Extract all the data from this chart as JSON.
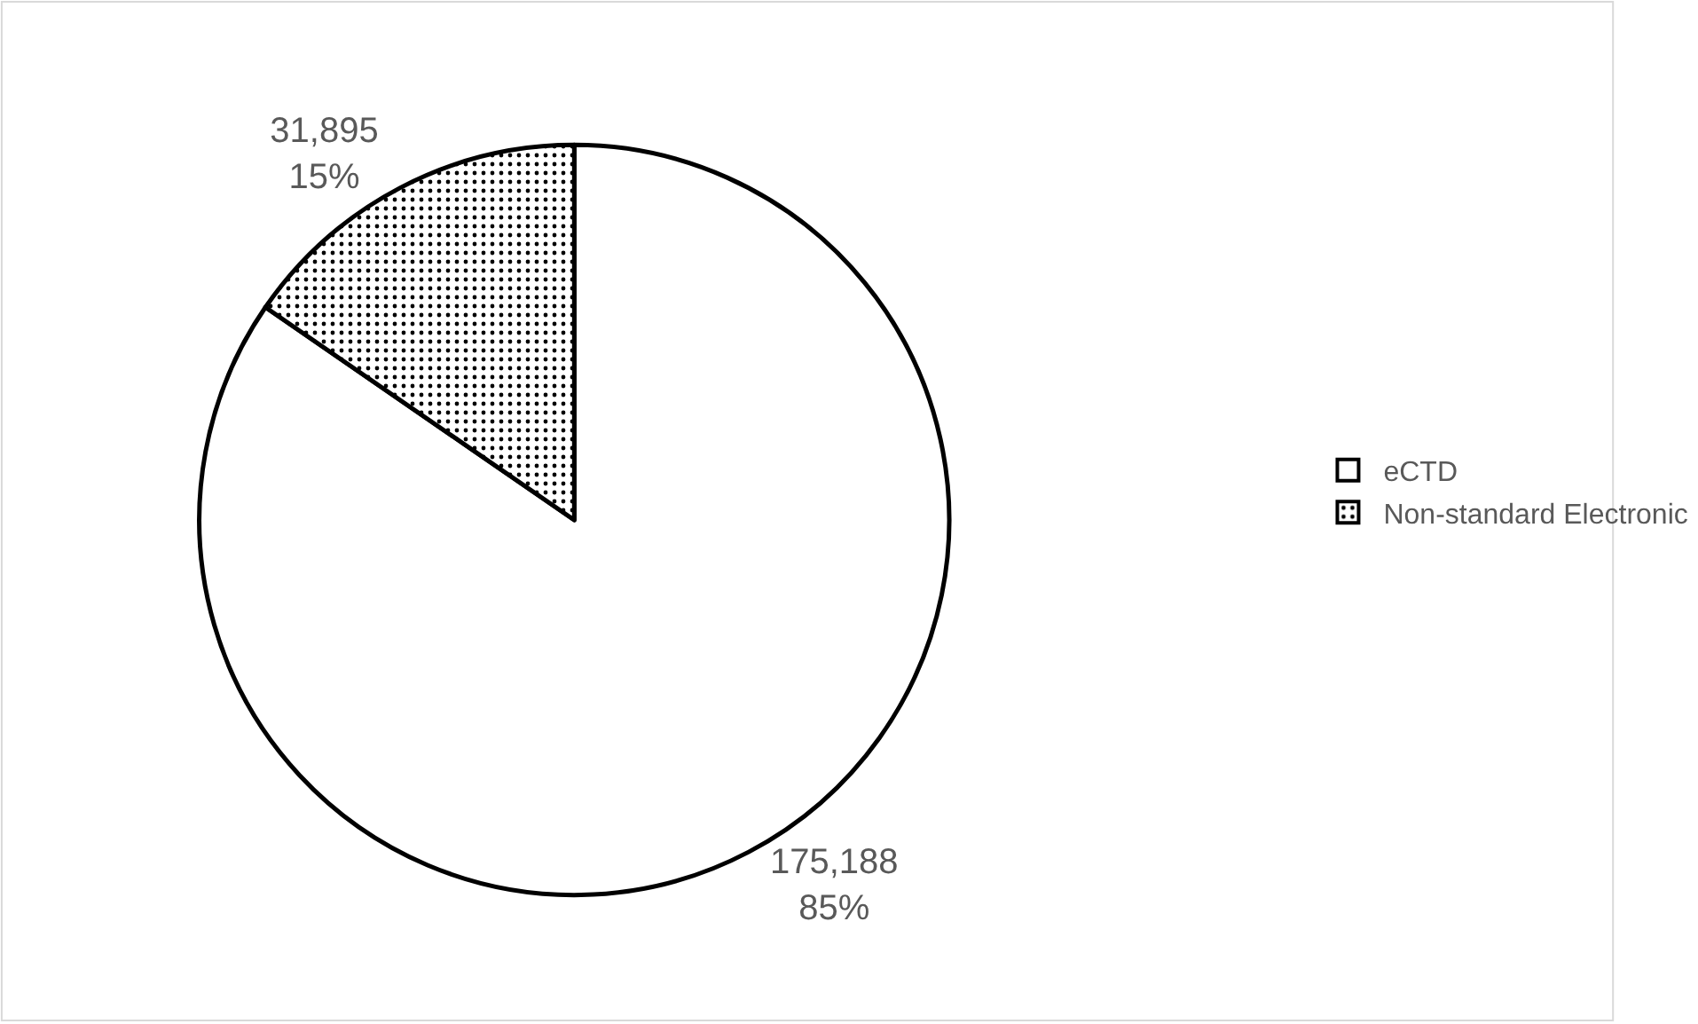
{
  "chart_data": {
    "type": "pie",
    "categories": [
      "eCTD",
      "Non-standard Electronic"
    ],
    "values": [
      175188,
      31895
    ],
    "value_labels": [
      "175,188\n85%",
      "31,895\n15%"
    ],
    "colors": [
      "#ffffff",
      "#000000"
    ],
    "legend": "right"
  }
}
